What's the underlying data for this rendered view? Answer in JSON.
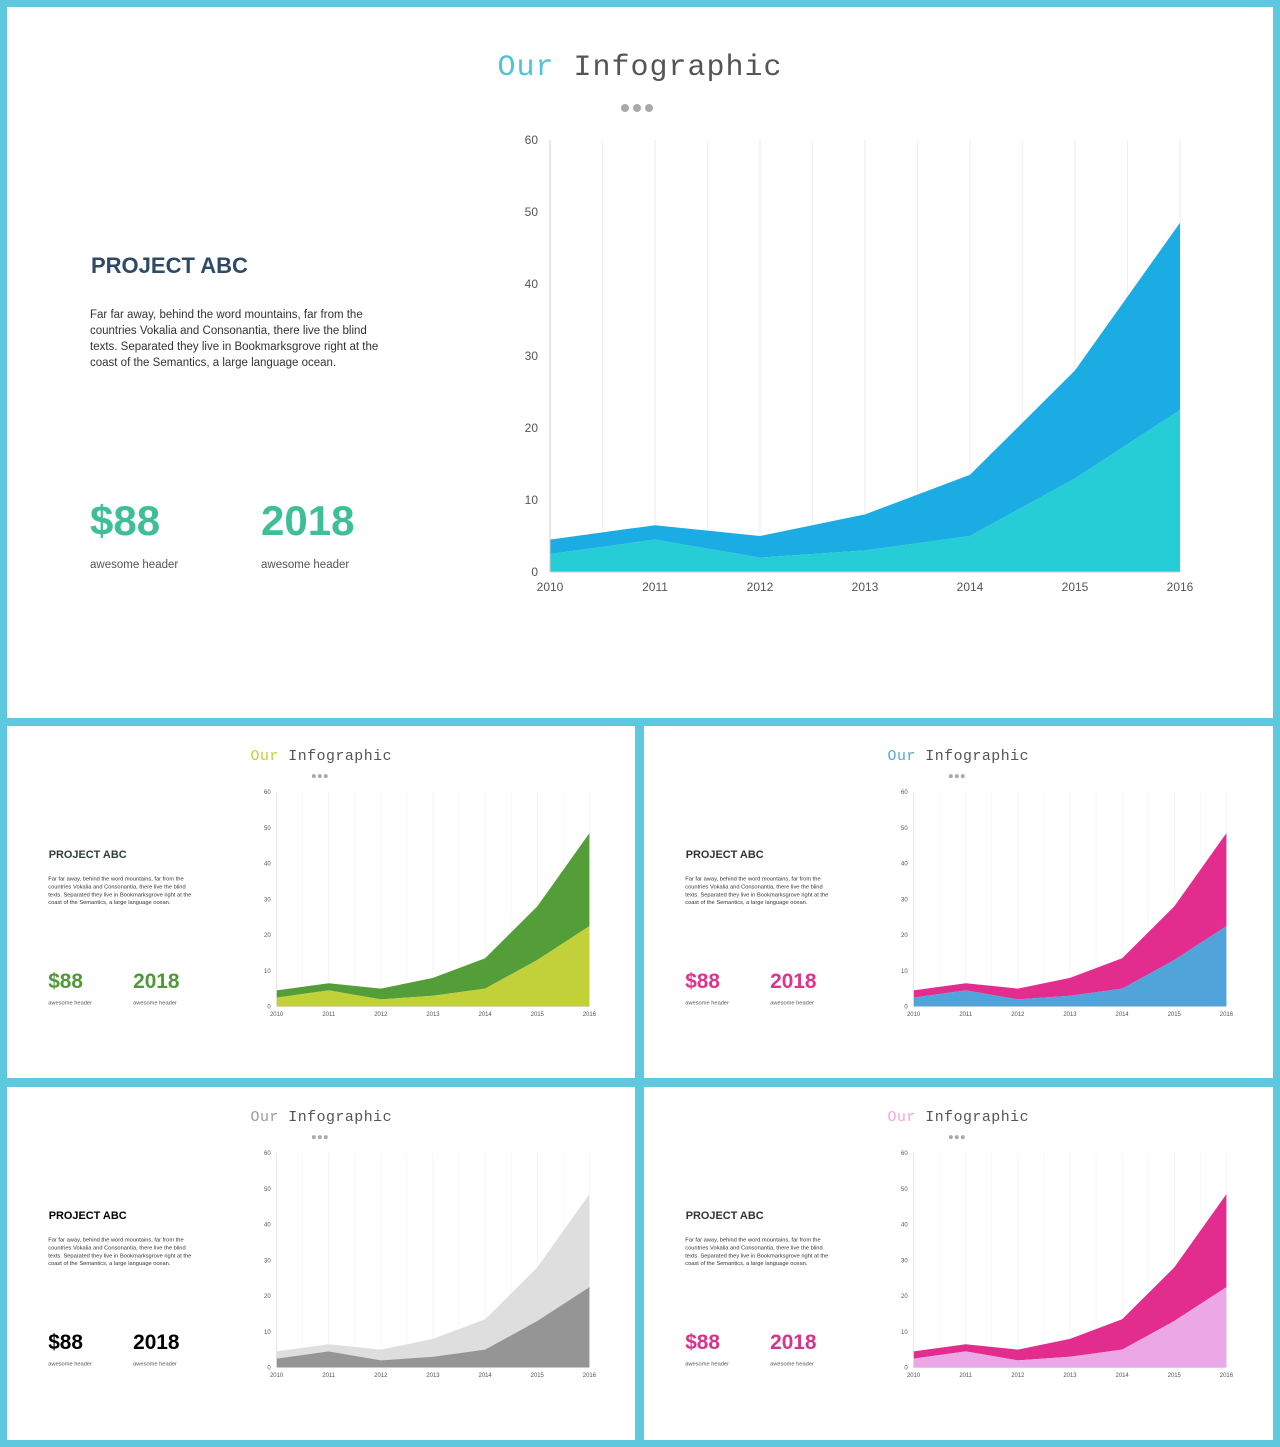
{
  "chart_data": {
    "type": "area",
    "stacked": true,
    "x": [
      2010,
      2011,
      2012,
      2013,
      2014,
      2015,
      2016
    ],
    "series": [
      {
        "values": [
          2.5,
          4.5,
          2,
          3,
          5,
          13,
          22.5
        ]
      },
      {
        "values": [
          2,
          2,
          3,
          5,
          8.5,
          15,
          26
        ]
      }
    ],
    "ylim": [
      0,
      60
    ],
    "yticks": [
      0,
      10,
      20,
      30,
      40,
      50,
      60
    ],
    "xticks": [
      "2010",
      "2011",
      "2012",
      "2013",
      "2014",
      "2015",
      "2016"
    ],
    "grid": "vertical"
  },
  "content": {
    "title_word1": "Our",
    "title_word2": "Infographic",
    "project_title": "PROJECT ABC",
    "description": "Far far away, behind the word mountains, far from the countries Vokalia and Consonantia, there live the blind texts. Separated they  live in Bookmarksgrove right at the coast of the Semantics, a large language ocean.",
    "stats": [
      {
        "value": "$88",
        "label": "awesome header"
      },
      {
        "value": "2018",
        "label": "awesome header"
      }
    ]
  },
  "themes": [
    {
      "title_accent": "#4fc3d8",
      "heading": "#2e4a66",
      "stat": "#3fbf97",
      "area_bottom": "#26ccd6",
      "area_top": "#1aace2"
    },
    {
      "title_accent": "#c2d13a",
      "heading": "#2e3e3e",
      "stat": "#4f9a38",
      "area_bottom": "#c2d13a",
      "area_top": "#549e3a"
    },
    {
      "title_accent": "#54a9d6",
      "heading": "#333333",
      "stat": "#e0338c",
      "area_bottom": "#50a4da",
      "area_top": "#e32d8e"
    },
    {
      "title_accent": "#9a9a9a",
      "heading": "#000000",
      "stat": "#000000",
      "area_bottom": "#959595",
      "area_top": "#dedede"
    },
    {
      "title_accent": "#f0a8d8",
      "heading": "#333333",
      "stat": "#d8338c",
      "area_bottom": "#eba7e6",
      "area_top": "#e32d8e"
    }
  ]
}
